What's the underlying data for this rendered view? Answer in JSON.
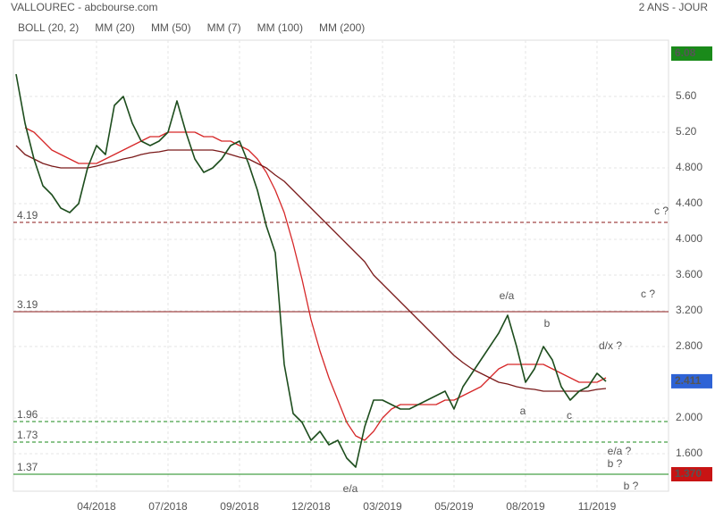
{
  "chart_data": {
    "type": "line",
    "title": "VALLOUREC - abcbourse.com",
    "subtitle": "2 ANS - JOUR",
    "color": "#1d4d1d",
    "categories": [
      null,
      null,
      null,
      null,
      null,
      null,
      null,
      null,
      null,
      "04/2018",
      null,
      null,
      null,
      null,
      null,
      null,
      null,
      "07/2018",
      null,
      null,
      null,
      null,
      null,
      null,
      null,
      "09/2018",
      null,
      null,
      null,
      null,
      null,
      null,
      null,
      "12/2018",
      null,
      null,
      null,
      null,
      null,
      null,
      null,
      "03/2019",
      null,
      null,
      null,
      null,
      null,
      null,
      null,
      "05/2019",
      null,
      null,
      null,
      null,
      null,
      null,
      null,
      "08/2019",
      null,
      null,
      null,
      null,
      null,
      null,
      null,
      "11/2019",
      null
    ],
    "values": [
      5.85,
      5.3,
      4.9,
      4.6,
      4.5,
      4.35,
      4.3,
      4.4,
      4.8,
      5.05,
      4.95,
      5.5,
      5.6,
      5.3,
      5.1,
      5.05,
      5.1,
      5.2,
      5.55,
      5.2,
      4.9,
      4.75,
      4.8,
      4.9,
      5.05,
      5.1,
      4.85,
      4.55,
      4.15,
      3.85,
      2.6,
      2.05,
      1.95,
      1.75,
      1.85,
      1.7,
      1.75,
      1.55,
      1.45,
      1.9,
      2.2,
      2.2,
      2.15,
      2.1,
      2.1,
      2.15,
      2.2,
      2.25,
      2.3,
      2.1,
      2.35,
      2.5,
      2.65,
      2.8,
      2.95,
      3.15,
      2.8,
      2.4,
      2.55,
      2.8,
      2.65,
      2.35,
      2.2,
      2.3,
      2.35,
      2.5,
      2.41
    ],
    "series": [
      {
        "name": "MM (50)",
        "color": "#d62728",
        "values": [
          null,
          5.25,
          5.2,
          5.1,
          5.0,
          4.95,
          4.9,
          4.85,
          4.85,
          4.85,
          4.9,
          4.95,
          5.0,
          5.05,
          5.1,
          5.15,
          5.15,
          5.2,
          5.2,
          5.2,
          5.2,
          5.15,
          5.15,
          5.1,
          5.1,
          5.05,
          5.0,
          4.9,
          4.75,
          4.55,
          4.3,
          3.95,
          3.55,
          3.1,
          2.75,
          2.45,
          2.2,
          1.95,
          1.8,
          1.75,
          1.85,
          2.0,
          2.1,
          2.15,
          2.15,
          2.15,
          2.15,
          2.15,
          2.2,
          2.2,
          2.25,
          2.3,
          2.35,
          2.45,
          2.55,
          2.6,
          2.6,
          2.6,
          2.6,
          2.6,
          2.55,
          2.5,
          2.45,
          2.4,
          2.4,
          2.4,
          2.45
        ]
      },
      {
        "name": "MM (200)",
        "color": "#7a1a1a",
        "values": [
          5.05,
          4.95,
          4.9,
          4.85,
          4.82,
          4.8,
          4.8,
          4.8,
          4.8,
          4.82,
          4.85,
          4.87,
          4.9,
          4.92,
          4.95,
          4.97,
          4.98,
          5.0,
          5.0,
          5.0,
          5.0,
          5.0,
          5.0,
          4.98,
          4.95,
          4.92,
          4.9,
          4.85,
          4.8,
          4.72,
          4.65,
          4.55,
          4.45,
          4.35,
          4.25,
          4.15,
          4.05,
          3.95,
          3.85,
          3.75,
          3.6,
          3.5,
          3.4,
          3.3,
          3.2,
          3.1,
          3.0,
          2.9,
          2.8,
          2.7,
          2.62,
          2.55,
          2.5,
          2.45,
          2.4,
          2.38,
          2.35,
          2.33,
          2.32,
          2.3,
          2.3,
          2.3,
          2.3,
          2.3,
          2.3,
          2.32,
          2.33
        ]
      }
    ],
    "indicators": [
      {
        "name": "BOLL (20, 2)",
        "color": "#333333"
      },
      {
        "name": "MM (20)",
        "color": "#3b6fd6"
      },
      {
        "name": "MM (7)",
        "color": "#1a8a1a"
      },
      {
        "name": "MM (100)",
        "color": "#f07d1a"
      }
    ],
    "ylim": [
      1.18,
      6.23
    ],
    "yticks": [
      {
        "value": 5.6,
        "label": "5.60"
      },
      {
        "value": 5.2,
        "label": "5.20"
      },
      {
        "value": 4.8,
        "label": "4.800"
      },
      {
        "value": 4.4,
        "label": "4.400"
      },
      {
        "value": 4.0,
        "label": "4.000"
      },
      {
        "value": 3.6,
        "label": "3.600"
      },
      {
        "value": 3.2,
        "label": "3.200"
      },
      {
        "value": 2.8,
        "label": "2.800"
      },
      {
        "value": 2.0,
        "label": "2.000"
      },
      {
        "value": 1.6,
        "label": "1.600"
      }
    ],
    "grid": true,
    "levels": [
      {
        "value": 4.19,
        "color": "#8b1a1a",
        "style": "dashed"
      },
      {
        "value": 3.19,
        "color": "#8b1a1a",
        "style": "solid"
      },
      {
        "value": 1.96,
        "color": "#1a8a1a",
        "style": "dashed"
      },
      {
        "value": 1.73,
        "color": "#1a8a1a",
        "style": "dashed"
      },
      {
        "value": 1.37,
        "color": "#1a8a1a",
        "style": "solid"
      }
    ],
    "markers": [
      {
        "value": 6.08,
        "color": "#1a8a1a"
      },
      {
        "value": 2.411,
        "color": "#2e63d6"
      },
      {
        "value": 1.37,
        "label": "1.370",
        "color": "#c81414"
      }
    ],
    "annotations": [
      {
        "text": "c ?",
        "color": "#1a1a7a"
      },
      {
        "text": "c ?",
        "color": "#1a1a7a"
      },
      {
        "text": "e/a",
        "color": "#1a1a7a"
      },
      {
        "text": "b",
        "color": "#c0392b"
      },
      {
        "text": "d/x ?",
        "color": "#c0392b"
      },
      {
        "text": "a",
        "color": "#c0392b"
      },
      {
        "text": "c",
        "color": "#c0392b"
      },
      {
        "text": "e/a ?",
        "color": "#c0392b"
      },
      {
        "text": "b ?",
        "color": "#1a1a7a"
      },
      {
        "text": "b ?",
        "color": "#1a1a7a"
      },
      {
        "text": "e/a",
        "color": "#c0392b"
      }
    ]
  }
}
